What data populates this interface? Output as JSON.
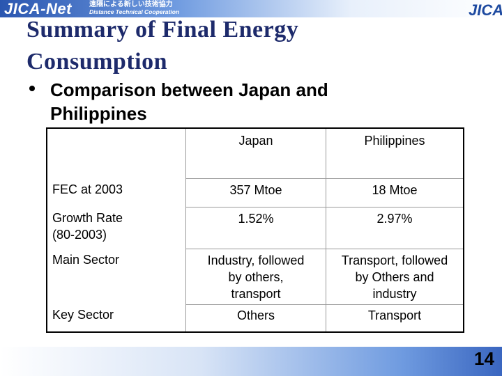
{
  "header": {
    "logo": "JICA-Net",
    "tagline_ja": "遠隔による新しい技術協力",
    "tagline_en": "Distance Technical Cooperation",
    "brand": "JICA"
  },
  "title": "Summary of Final Energy Consumption",
  "bullet": "Comparison between Japan and Philippines",
  "table": {
    "columns": [
      "Japan",
      "Philippines"
    ],
    "rows": [
      [
        "FEC at 2003",
        "357 Mtoe",
        "18 Mtoe"
      ],
      [
        "Growth Rate\n(80-2003)",
        "1.52%",
        "2.97%"
      ],
      [
        "Main Sector",
        "Industry, followed\nby others,\ntransport",
        "Transport, followed\nby Others and\nindustry"
      ],
      [
        "Key Sector",
        "Others",
        "Transport"
      ]
    ]
  },
  "page_number": "14"
}
